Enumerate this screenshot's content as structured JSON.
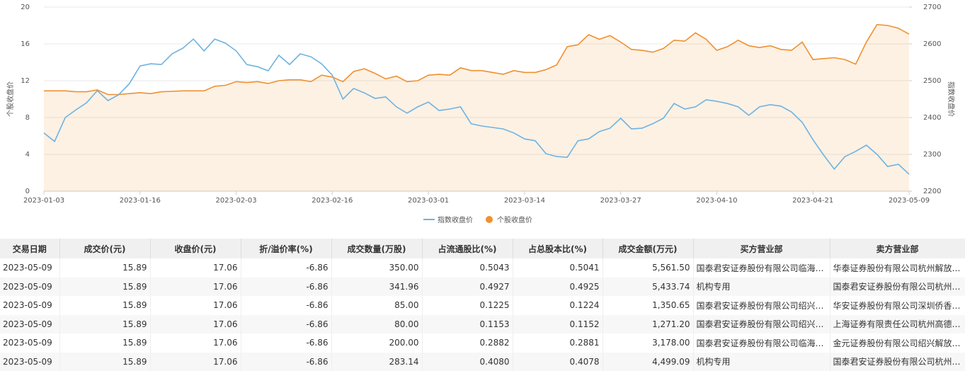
{
  "chart_data": {
    "type": "line",
    "y_label": "个股收盘价",
    "y2_label": "指数收盘价",
    "categories": [
      "2023-01-03",
      null,
      null,
      null,
      null,
      null,
      null,
      null,
      null,
      "2023-01-16",
      null,
      null,
      null,
      null,
      null,
      null,
      null,
      null,
      "2023-02-03",
      null,
      null,
      null,
      null,
      null,
      null,
      null,
      null,
      "2023-02-16",
      null,
      null,
      null,
      null,
      null,
      null,
      null,
      null,
      "2023-03-01",
      null,
      null,
      null,
      null,
      null,
      null,
      null,
      null,
      "2023-03-14",
      null,
      null,
      null,
      null,
      null,
      null,
      null,
      null,
      "2023-03-27",
      null,
      null,
      null,
      null,
      null,
      null,
      null,
      null,
      "2023-04-10",
      null,
      null,
      null,
      null,
      null,
      null,
      null,
      null,
      "2023-04-21",
      null,
      null,
      null,
      null,
      null,
      null,
      null,
      null,
      "2023-05-09"
    ],
    "series": [
      {
        "name": "指数收盘价",
        "color": "#6fb3e0",
        "axis": "y2",
        "values": [
          2358,
          2335,
          2400,
          2421,
          2440,
          2473,
          2446,
          2462,
          2492,
          2540,
          2546,
          2544,
          2573,
          2588,
          2613,
          2581,
          2613,
          2602,
          2581,
          2544,
          2538,
          2527,
          2569,
          2544,
          2573,
          2565,
          2546,
          2515,
          2450,
          2479,
          2467,
          2452,
          2456,
          2429,
          2412,
          2429,
          2442,
          2419,
          2423,
          2429,
          2383,
          2377,
          2373,
          2369,
          2358,
          2342,
          2337,
          2302,
          2294,
          2292,
          2337,
          2342,
          2362,
          2371,
          2398,
          2369,
          2371,
          2383,
          2398,
          2438,
          2423,
          2429,
          2448,
          2444,
          2438,
          2429,
          2406,
          2429,
          2435,
          2431,
          2415,
          2387,
          2340,
          2298,
          2260,
          2294,
          2308,
          2325,
          2300,
          2267,
          2273,
          2246
        ]
      },
      {
        "name": "个股收盘价",
        "color": "#f0902f",
        "area": true,
        "values": [
          10.9,
          10.9,
          10.9,
          10.8,
          10.8,
          11.0,
          10.5,
          10.5,
          10.6,
          10.7,
          10.6,
          10.8,
          10.85,
          10.9,
          10.9,
          10.9,
          11.4,
          11.5,
          11.9,
          11.8,
          11.9,
          11.7,
          12.0,
          12.1,
          12.1,
          11.9,
          12.6,
          12.4,
          11.9,
          13.0,
          13.3,
          12.8,
          12.2,
          12.5,
          11.9,
          12.0,
          12.6,
          12.7,
          12.6,
          13.4,
          13.1,
          13.1,
          12.9,
          12.7,
          13.1,
          12.9,
          12.9,
          13.2,
          13.7,
          15.7,
          15.9,
          17.0,
          16.5,
          16.9,
          16.2,
          15.4,
          15.3,
          15.1,
          15.5,
          16.4,
          16.3,
          17.2,
          16.5,
          15.3,
          15.7,
          16.4,
          15.8,
          15.6,
          15.8,
          15.4,
          15.3,
          16.2,
          14.3,
          14.4,
          14.5,
          14.3,
          13.8,
          16.2,
          18.1,
          18.0,
          17.7,
          17.06
        ]
      }
    ],
    "ylim": [
      0,
      20
    ],
    "yticks": [
      0,
      4,
      8,
      12,
      16,
      20
    ],
    "y2lim": [
      2200,
      2700
    ],
    "y2ticks": [
      2200,
      2300,
      2400,
      2500,
      2600,
      2700
    ],
    "grid": true,
    "legend": "bottom"
  },
  "table": {
    "header": [
      "交易日期",
      "成交价(元)",
      "收盘价(元)",
      "折/溢价率(%)",
      "成交数量(万股)",
      "占流通股比(%)",
      "占总股本比(%)",
      "成交金额(万元)",
      "买方营业部",
      "卖方营业部"
    ],
    "rows": [
      [
        "2023-05-09",
        "15.89",
        "17.06",
        "-6.86",
        "350.00",
        "0.5043",
        "0.5041",
        "5,561.50",
        "国泰君安证券股份有限公司临海…",
        "华泰证券股份有限公司杭州解放…"
      ],
      [
        "2023-05-09",
        "15.89",
        "17.06",
        "-6.86",
        "341.96",
        "0.4927",
        "0.4925",
        "5,433.74",
        "机构专用",
        "国泰君安证券股份有限公司杭州…"
      ],
      [
        "2023-05-09",
        "15.89",
        "17.06",
        "-6.86",
        "85.00",
        "0.1225",
        "0.1224",
        "1,350.65",
        "国泰君安证券股份有限公司绍兴…",
        "华安证券股份有限公司深圳侨香…"
      ],
      [
        "2023-05-09",
        "15.89",
        "17.06",
        "-6.86",
        "80.00",
        "0.1153",
        "0.1152",
        "1,271.20",
        "国泰君安证券股份有限公司绍兴…",
        "上海证券有限责任公司杭州高德…"
      ],
      [
        "2023-05-09",
        "15.89",
        "17.06",
        "-6.86",
        "200.00",
        "0.2882",
        "0.2881",
        "3,178.00",
        "国泰君安证券股份有限公司临海…",
        "金元证券股份有限公司绍兴解放…"
      ],
      [
        "2023-05-09",
        "15.89",
        "17.06",
        "-6.86",
        "283.14",
        "0.4080",
        "0.4078",
        "4,499.09",
        "机构专用",
        "国泰君安证券股份有限公司杭州…"
      ]
    ]
  }
}
